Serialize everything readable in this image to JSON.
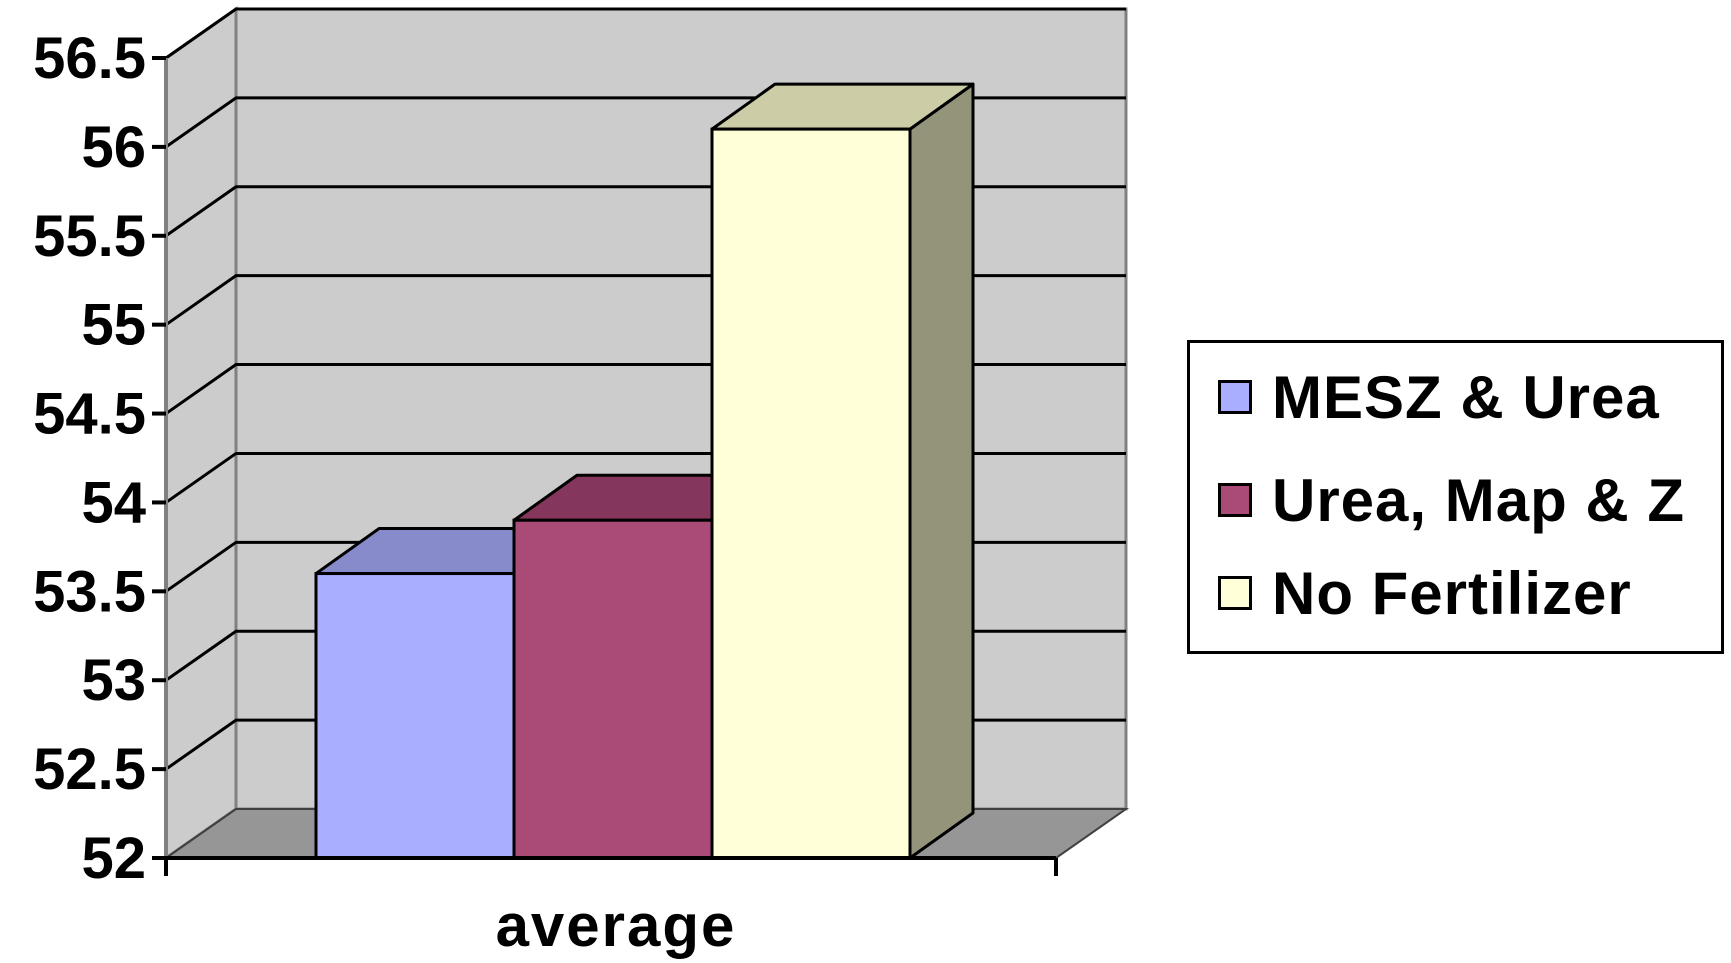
{
  "chart_data": {
    "type": "bar",
    "style": "3d-clustered-column",
    "categories": [
      "average"
    ],
    "series": [
      {
        "name": "MESZ & Urea",
        "values": [
          53.6
        ],
        "color": "#A9AEFF",
        "top_color": "#878BCC",
        "side_color": "#6E72A8"
      },
      {
        "name": "Urea, Map & Z",
        "values": [
          53.9
        ],
        "color": "#A94A77",
        "top_color": "#85365D",
        "side_color": "#6E2C4C"
      },
      {
        "name": "No Fertilizer",
        "values": [
          56.1
        ],
        "color": "#FFFFD8",
        "top_color": "#CCCCA6",
        "side_color": "#94947A"
      }
    ],
    "ylim": [
      52,
      56.5
    ],
    "y_ticks": [
      "52",
      "52.5",
      "53",
      "53.5",
      "54",
      "54.5",
      "55",
      "55.5",
      "56",
      "56.5"
    ],
    "title": "",
    "xlabel": "",
    "ylabel": "",
    "grid": true,
    "legend_position": "right",
    "wall_color": "#CCCCCC",
    "floor_color": "#969696"
  },
  "legend": {
    "items": [
      "MESZ & Urea",
      "Urea, Map & Z",
      "No Fertilizer"
    ]
  }
}
